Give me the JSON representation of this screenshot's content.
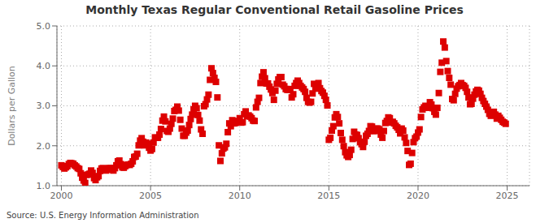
{
  "chart_data": {
    "type": "scatter",
    "title": "Monthly Texas Regular Conventional Retail Gasoline Prices",
    "ylabel": "Dollars per Gallon",
    "annotations": [
      "Source: U.S. Energy Information Administration"
    ],
    "color": "#DD0000",
    "marker": "square",
    "grid": true,
    "xlim": [
      1999.75,
      2026.25
    ],
    "ylim": [
      1.0,
      5.0
    ],
    "xticks": [
      2000,
      2005,
      2010,
      2015,
      2020,
      2025
    ],
    "yticks": [
      {
        "value": 1.0,
        "label": "1.0"
      },
      {
        "value": 2.0,
        "label": "2.0"
      },
      {
        "value": 3.0,
        "label": "3.0"
      },
      {
        "value": 4.0,
        "label": "4.0"
      },
      {
        "value": 5.0,
        "label": "5.0"
      }
    ],
    "x": [
      2000,
      2000.0833333333333,
      2000.1666666666667,
      2000.25,
      2000.3333333333333,
      2000.4166666666667,
      2000.5,
      2000.5833333333333,
      2000.6666666666667,
      2000.75,
      2000.8333333333333,
      2000.9166666666667,
      2001,
      2001.0833333333333,
      2001.1666666666667,
      2001.25,
      2001.3333333333333,
      2001.4166666666667,
      2001.5,
      2001.5833333333333,
      2001.6666666666667,
      2001.75,
      2001.8333333333333,
      2001.9166666666667,
      2002,
      2002.0833333333333,
      2002.1666666666667,
      2002.25,
      2002.3333333333333,
      2002.4166666666667,
      2002.5,
      2002.5833333333333,
      2002.6666666666667,
      2002.75,
      2002.8333333333333,
      2002.9166666666667,
      2003,
      2003.0833333333333,
      2003.1666666666667,
      2003.25,
      2003.3333333333333,
      2003.4166666666667,
      2003.5,
      2003.5833333333333,
      2003.6666666666667,
      2003.75,
      2003.8333333333333,
      2003.9166666666667,
      2004,
      2004.0833333333333,
      2004.1666666666667,
      2004.25,
      2004.3333333333333,
      2004.4166666666667,
      2004.5,
      2004.5833333333333,
      2004.6666666666667,
      2004.75,
      2004.8333333333333,
      2004.9166666666667,
      2005,
      2005.0833333333333,
      2005.1666666666667,
      2005.25,
      2005.3333333333333,
      2005.4166666666667,
      2005.5,
      2005.5833333333333,
      2005.6666666666667,
      2005.75,
      2005.8333333333333,
      2005.9166666666667,
      2006,
      2006.0833333333333,
      2006.1666666666667,
      2006.25,
      2006.3333333333333,
      2006.4166666666667,
      2006.5,
      2006.5833333333333,
      2006.6666666666667,
      2006.75,
      2006.8333333333333,
      2006.9166666666667,
      2007,
      2007.0833333333333,
      2007.1666666666667,
      2007.25,
      2007.3333333333333,
      2007.4166666666667,
      2007.5,
      2007.5833333333333,
      2007.6666666666667,
      2007.75,
      2007.8333333333333,
      2007.9166666666667,
      2008,
      2008.0833333333333,
      2008.1666666666667,
      2008.25,
      2008.3333333333333,
      2008.4166666666667,
      2008.5,
      2008.5833333333333,
      2008.6666666666667,
      2008.75,
      2008.8333333333333,
      2008.9166666666667,
      2009,
      2009.0833333333333,
      2009.1666666666667,
      2009.25,
      2009.3333333333333,
      2009.4166666666667,
      2009.5,
      2009.5833333333333,
      2009.6666666666667,
      2009.75,
      2009.8333333333333,
      2009.9166666666667,
      2010,
      2010.0833333333333,
      2010.1666666666667,
      2010.25,
      2010.3333333333333,
      2010.4166666666667,
      2010.5,
      2010.5833333333333,
      2010.6666666666667,
      2010.75,
      2010.8333333333333,
      2010.9166666666667,
      2011,
      2011.0833333333333,
      2011.1666666666667,
      2011.25,
      2011.3333333333333,
      2011.4166666666667,
      2011.5,
      2011.5833333333333,
      2011.6666666666667,
      2011.75,
      2011.8333333333333,
      2011.9166666666667,
      2012,
      2012.0833333333333,
      2012.1666666666667,
      2012.25,
      2012.3333333333333,
      2012.4166666666667,
      2012.5,
      2012.5833333333333,
      2012.6666666666667,
      2012.75,
      2012.8333333333333,
      2012.9166666666667,
      2013,
      2013.0833333333333,
      2013.1666666666667,
      2013.25,
      2013.3333333333333,
      2013.4166666666667,
      2013.5,
      2013.5833333333333,
      2013.6666666666667,
      2013.75,
      2013.8333333333333,
      2013.9166666666667,
      2014,
      2014.0833333333333,
      2014.1666666666667,
      2014.25,
      2014.3333333333333,
      2014.4166666666667,
      2014.5,
      2014.5833333333333,
      2014.6666666666667,
      2014.75,
      2014.8333333333333,
      2014.9166666666667,
      2015,
      2015.0833333333333,
      2015.1666666666667,
      2015.25,
      2015.3333333333333,
      2015.4166666666667,
      2015.5,
      2015.5833333333333,
      2015.6666666666667,
      2015.75,
      2015.8333333333333,
      2015.9166666666667,
      2016,
      2016.0833333333333,
      2016.1666666666667,
      2016.25,
      2016.3333333333333,
      2016.4166666666667,
      2016.5,
      2016.5833333333333,
      2016.6666666666667,
      2016.75,
      2016.8333333333333,
      2016.9166666666667,
      2017,
      2017.0833333333333,
      2017.1666666666667,
      2017.25,
      2017.3333333333333,
      2017.4166666666667,
      2017.5,
      2017.5833333333333,
      2017.6666666666667,
      2017.75,
      2017.8333333333333,
      2017.9166666666667,
      2018,
      2018.0833333333333,
      2018.1666666666667,
      2018.25,
      2018.3333333333333,
      2018.4166666666667,
      2018.5,
      2018.5833333333333,
      2018.6666666666667,
      2018.75,
      2018.8333333333333,
      2018.9166666666667,
      2019,
      2019.0833333333333,
      2019.1666666666667,
      2019.25,
      2019.3333333333333,
      2019.4166666666667,
      2019.5,
      2019.5833333333333,
      2019.6666666666667,
      2019.75,
      2019.8333333333333,
      2019.9166666666667,
      2020,
      2020.0833333333333,
      2020.1666666666667,
      2020.25,
      2020.3333333333333,
      2020.4166666666667,
      2020.5,
      2020.5833333333333,
      2020.6666666666667,
      2020.75,
      2020.8333333333333,
      2020.9166666666667,
      2021,
      2021.0833333333333,
      2021.1666666666667,
      2021.25,
      2021.3333333333333,
      2021.4166666666667,
      2021.5,
      2021.5833333333333,
      2021.6666666666667,
      2021.75,
      2021.8333333333333,
      2021.9166666666667,
      2022,
      2022.0833333333333,
      2022.1666666666667,
      2022.25,
      2022.3333333333333,
      2022.4166666666667,
      2022.5,
      2022.5833333333333,
      2022.6666666666667,
      2022.75,
      2022.8333333333333,
      2022.9166666666667,
      2023,
      2023.0833333333333,
      2023.1666666666667,
      2023.25,
      2023.3333333333333,
      2023.4166666666667,
      2023.5,
      2023.5833333333333,
      2023.6666666666667,
      2023.75,
      2023.8333333333333,
      2023.9166666666667,
      2024,
      2024.0833333333333,
      2024.1666666666667,
      2024.25,
      2024.3333333333333,
      2024.4166666666667,
      2024.5,
      2024.5833333333333,
      2024.6666666666667,
      2024.75,
      2024.8333333333333,
      2024.9166666666667
    ],
    "values": [
      1.51,
      1.47,
      1.43,
      1.46,
      1.49,
      1.54,
      1.57,
      1.56,
      1.55,
      1.51,
      1.48,
      1.44,
      1.42,
      1.31,
      1.2,
      1.13,
      1.07,
      1.27,
      1.28,
      1.3,
      1.38,
      1.32,
      1.19,
      1.14,
      1.21,
      1.24,
      1.37,
      1.43,
      1.44,
      1.4,
      1.38,
      1.4,
      1.44,
      1.44,
      1.41,
      1.38,
      1.44,
      1.51,
      1.61,
      1.63,
      1.54,
      1.46,
      1.45,
      1.49,
      1.52,
      1.53,
      1.52,
      1.55,
      1.61,
      1.72,
      1.73,
      1.8,
      2.01,
      2.13,
      2.19,
      2.1,
      2.01,
      2.08,
      2.05,
      1.95,
      1.88,
      1.92,
      2.08,
      2.21,
      2.2,
      2.2,
      2.28,
      2.42,
      2.63,
      2.73,
      2.61,
      2.37,
      2.35,
      2.43,
      2.55,
      2.68,
      2.87,
      2.9,
      2.98,
      2.88,
      2.65,
      2.43,
      2.25,
      2.25,
      2.33,
      2.38,
      2.52,
      2.67,
      2.78,
      2.91,
      3.0,
      2.94,
      2.77,
      2.63,
      2.41,
      2.3,
      2.99,
      3.04,
      3.16,
      3.28,
      3.65,
      3.94,
      3.82,
      3.7,
      3.6,
      3.21,
      2.01,
      1.62,
      1.81,
      1.93,
      1.96,
      2.05,
      2.34,
      2.56,
      2.49,
      2.64,
      2.56,
      2.57,
      2.62,
      2.59,
      2.69,
      2.58,
      2.59,
      2.79,
      2.86,
      2.74,
      2.76,
      2.73,
      2.69,
      2.63,
      2.62,
      2.96,
      3.1,
      3.2,
      3.57,
      3.73,
      3.84,
      3.69,
      3.56,
      3.56,
      3.48,
      3.41,
      3.32,
      3.15,
      3.38,
      3.55,
      3.66,
      3.72,
      3.72,
      3.53,
      3.49,
      3.42,
      3.4,
      3.4,
      3.42,
      3.21,
      3.29,
      3.5,
      3.57,
      3.63,
      3.57,
      3.5,
      3.46,
      3.42,
      3.35,
      3.2,
      3.1,
      3.08,
      3.1,
      3.31,
      3.55,
      3.44,
      3.43,
      3.57,
      3.44,
      3.37,
      3.33,
      3.25,
      3.15,
      3.01,
      2.15,
      2.2,
      2.38,
      2.49,
      2.71,
      2.79,
      2.72,
      2.56,
      2.32,
      2.15,
      1.99,
      1.84,
      1.76,
      1.72,
      1.77,
      1.9,
      2.17,
      2.35,
      2.28,
      2.27,
      2.19,
      2.09,
      2.04,
      1.97,
      2.1,
      2.25,
      2.3,
      2.37,
      2.49,
      2.48,
      2.37,
      2.37,
      2.43,
      2.43,
      2.41,
      2.28,
      2.2,
      2.37,
      2.57,
      2.62,
      2.71,
      2.69,
      2.58,
      2.6,
      2.56,
      2.5,
      2.46,
      2.4,
      2.31,
      2.43,
      2.38,
      2.21,
      2.07,
      1.87,
      1.52,
      1.55,
      1.82,
      2.09,
      2.19,
      2.23,
      2.33,
      2.41,
      2.72,
      2.91,
      2.96,
      3.0,
      2.95,
      2.97,
      3.09,
      3.03,
      2.94,
      2.85,
      2.78,
      2.95,
      3.32,
      3.85,
      4.08,
      4.61,
      4.46,
      4.12,
      3.87,
      3.7,
      3.53,
      3.17,
      3.14,
      3.3,
      3.43,
      3.49,
      3.52,
      3.57,
      3.52,
      3.5,
      3.45,
      3.35,
      3.21,
      3.04,
      3.05,
      3.18,
      3.28,
      3.36,
      3.4,
      3.38,
      3.3,
      3.2,
      3.12,
      3.05,
      2.98,
      2.9,
      2.8,
      2.75,
      2.83,
      2.85,
      2.78,
      2.68,
      2.75,
      2.7,
      2.65,
      2.6,
      2.58,
      2.55
    ]
  }
}
